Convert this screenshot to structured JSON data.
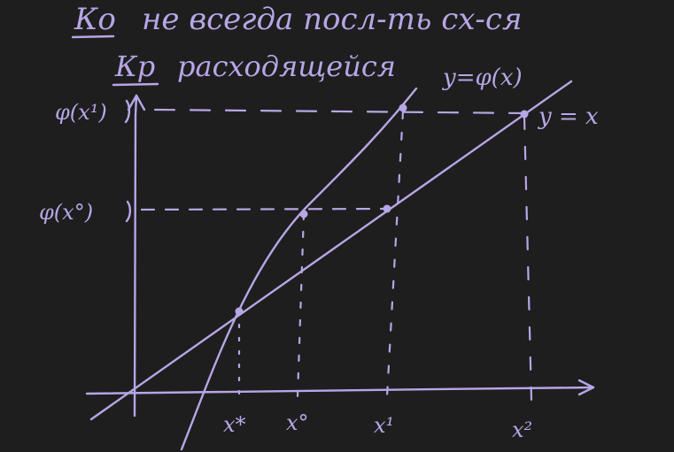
{
  "notes": {
    "line1_underlined": "Ко",
    "line1_rest": "не всегда посл-ть сх-ся",
    "line2_underlined": "Кр",
    "line2_rest": "расходящейся"
  },
  "curve_labels": {
    "phi": "y=φ(x)",
    "identity": "y = x"
  },
  "y_ticks": {
    "phi_x1": "φ(x¹)",
    "phi_x0": "φ(x°)"
  },
  "x_ticks": {
    "x_star": "x*",
    "x0": "x°",
    "x1": "x¹",
    "x2": "x²"
  },
  "colors": {
    "background": "#1e1e1e",
    "ink": "#b7a6e6"
  }
}
